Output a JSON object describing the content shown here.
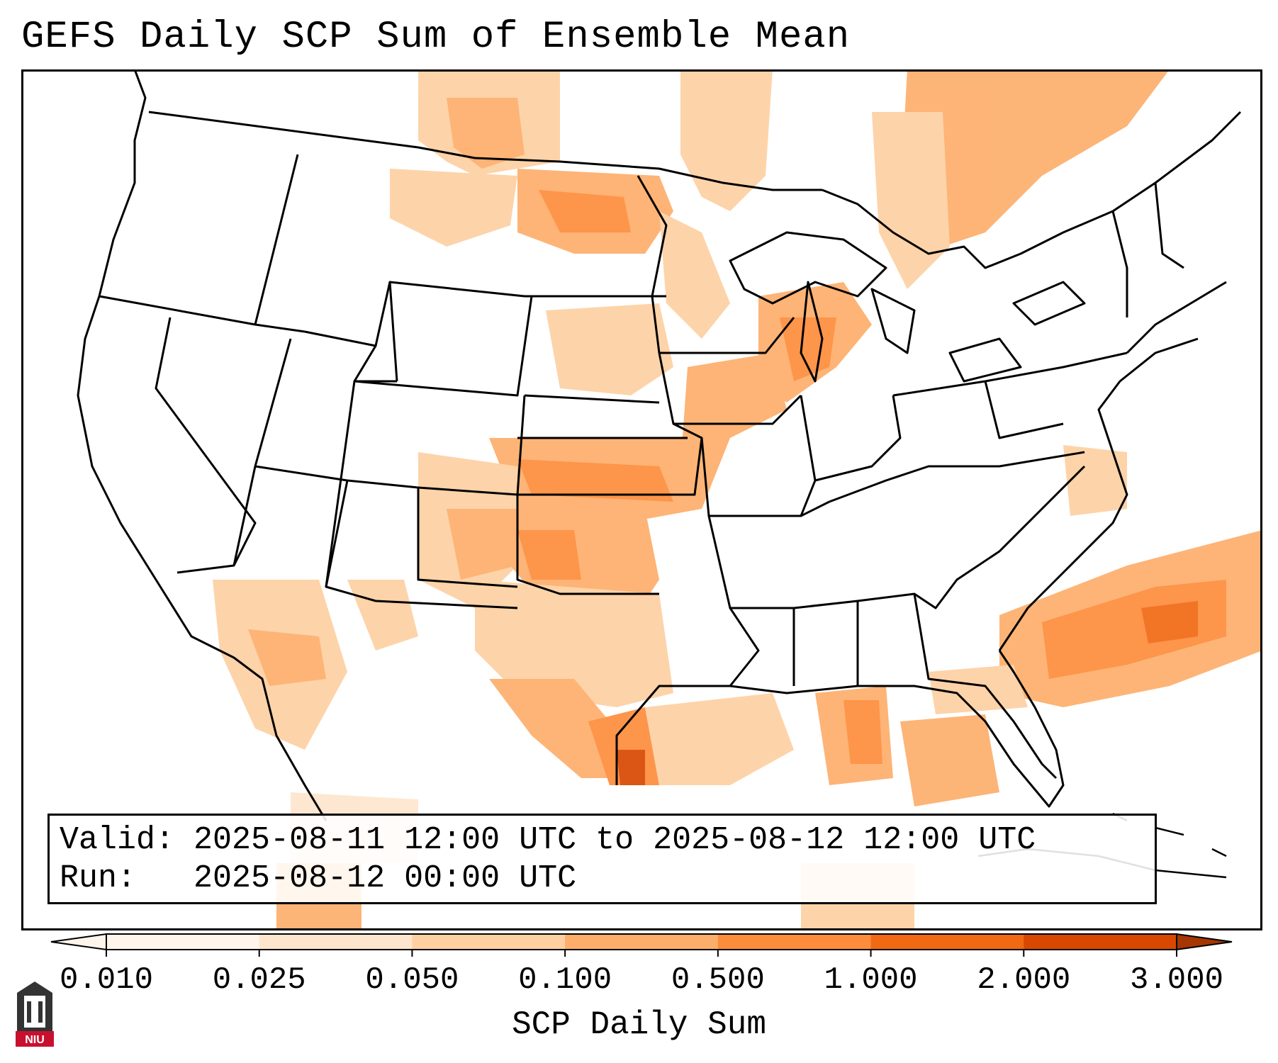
{
  "title": "GEFS Daily SCP Sum of Ensemble Mean",
  "info": {
    "valid_label": "Valid:",
    "valid_value": "2025-08-11 12:00 UTC to 2025-08-12 12:00 UTC",
    "run_label": "Run:",
    "run_value": "2025-08-12 00:00 UTC"
  },
  "colorbar": {
    "title": "SCP Daily Sum",
    "ticks": [
      "0.010",
      "0.025",
      "0.050",
      "0.100",
      "0.500",
      "1.000",
      "2.000",
      "3.000"
    ],
    "colors": [
      "#fff5eb",
      "#fee6ce",
      "#fdd0a2",
      "#fdae6b",
      "#fd8d3c",
      "#f16913",
      "#d94801",
      "#a63603"
    ]
  },
  "logo": {
    "text": "NIU"
  }
}
